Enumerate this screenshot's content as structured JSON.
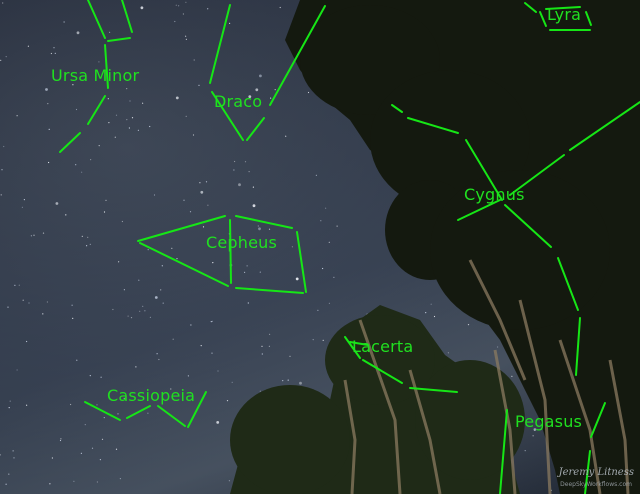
{
  "constellations": [
    {
      "name": "Ursa Minor"
    },
    {
      "name": "Draco"
    },
    {
      "name": "Lyra"
    },
    {
      "name": "Cepheus"
    },
    {
      "name": "Cygnus"
    },
    {
      "name": "Lacerta"
    },
    {
      "name": "Cassiopeia"
    },
    {
      "name": "Pegasus"
    }
  ],
  "line_color": "#16e616",
  "watermark": {
    "author": "Jeremy Litness",
    "site": "DeepSkyWorkflows.com"
  }
}
